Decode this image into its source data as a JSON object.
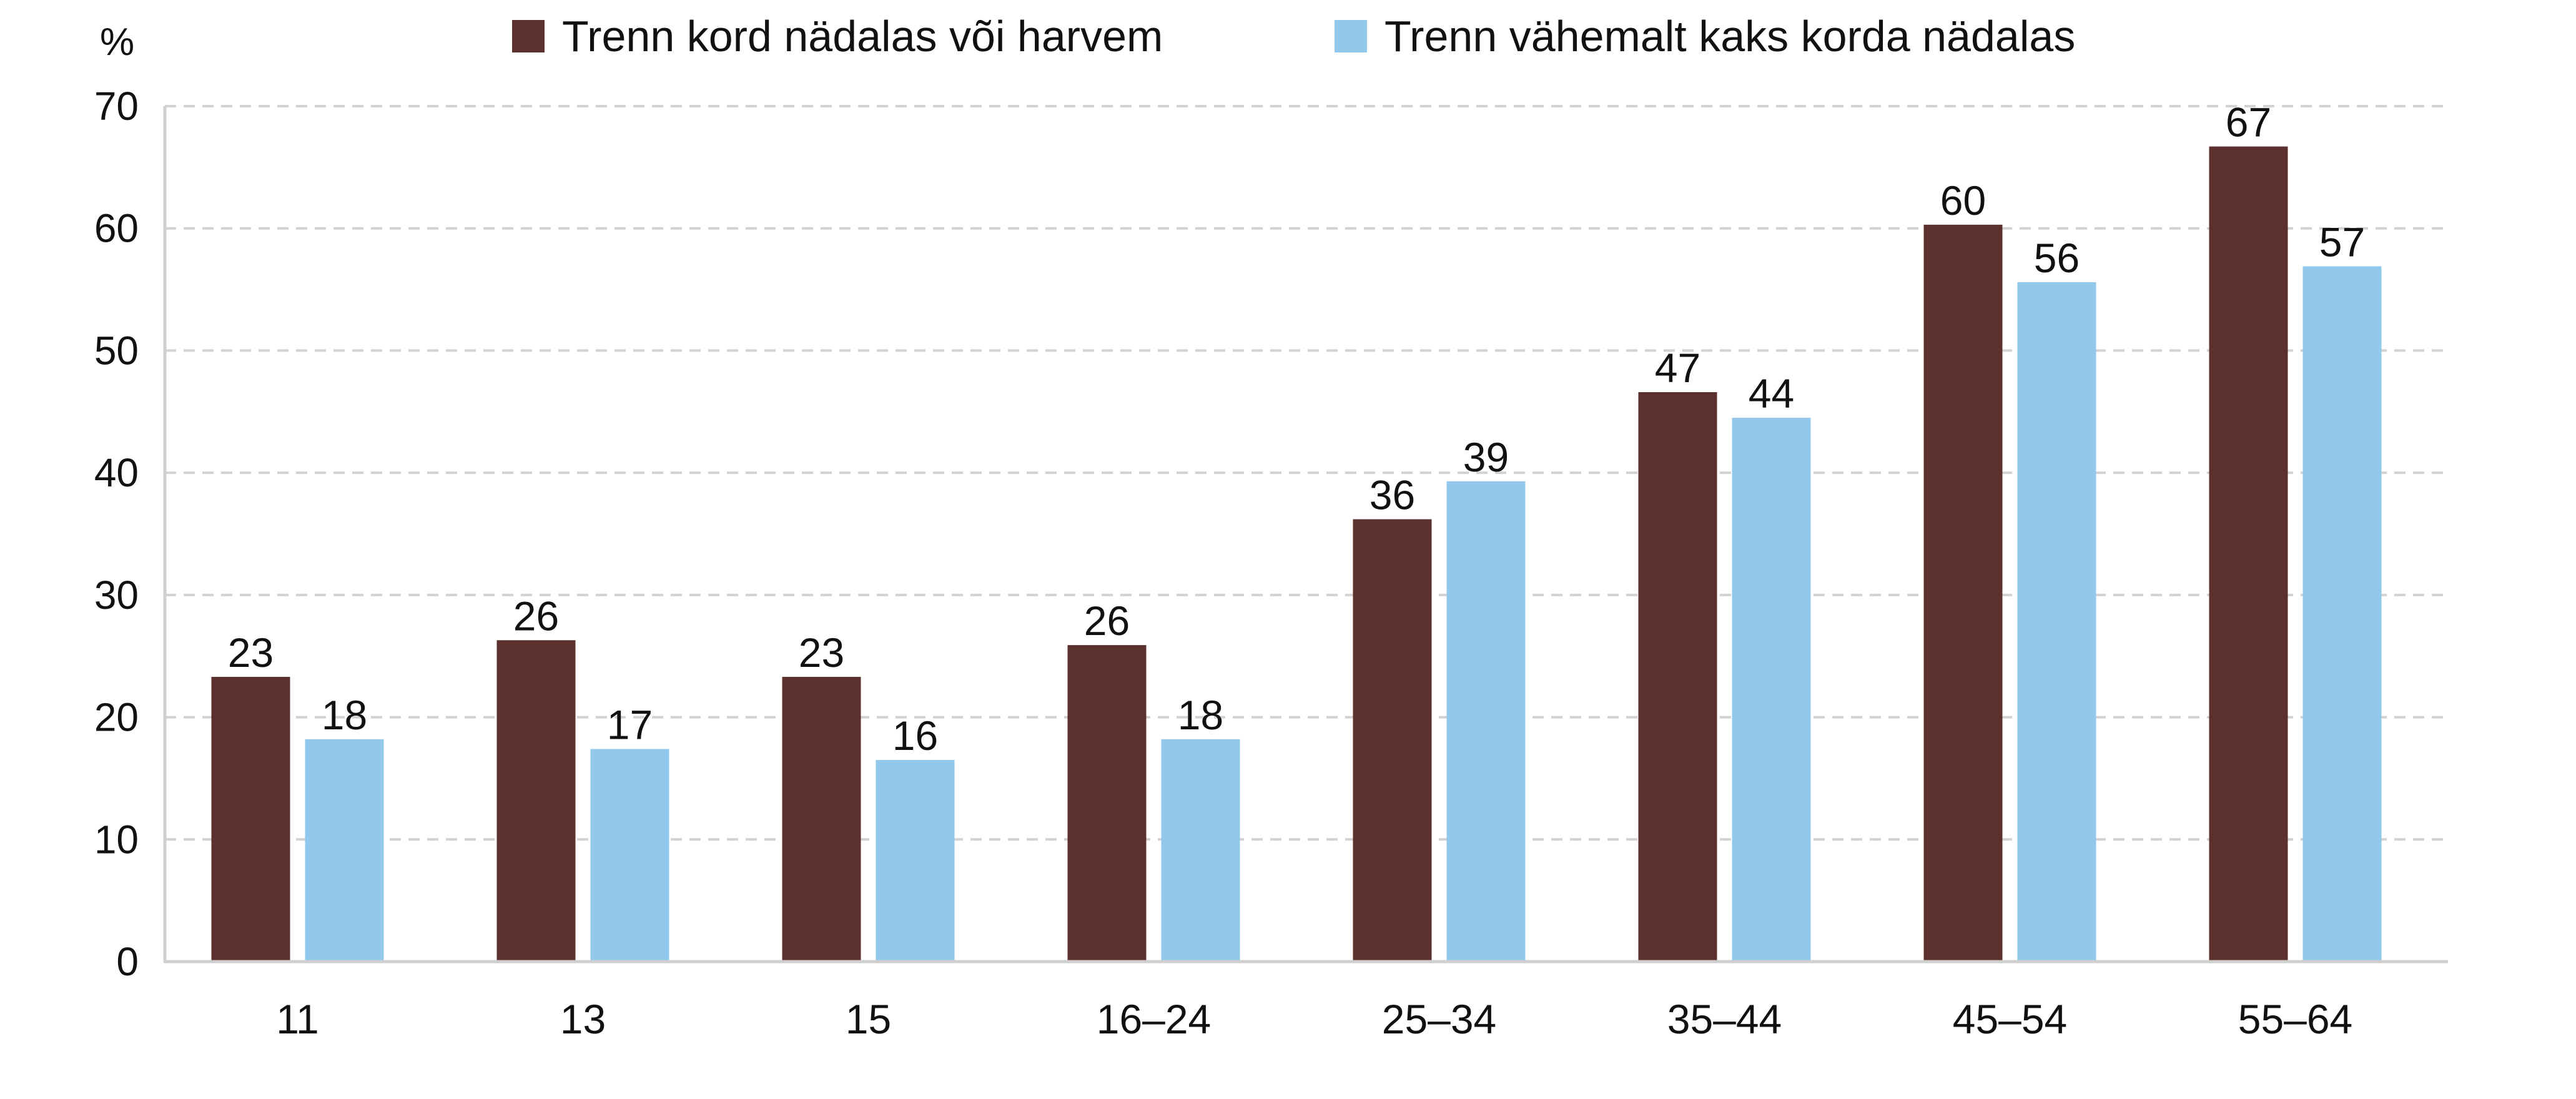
{
  "chart_data": {
    "type": "bar",
    "ylabel": "%",
    "ylim": [
      0,
      70
    ],
    "yticks": [
      0,
      10,
      20,
      30,
      40,
      50,
      60,
      70
    ],
    "grid": true,
    "legend_position": "top",
    "categories": [
      "11",
      "13",
      "15",
      "16–24",
      "25–34",
      "35–44",
      "45–54",
      "55–64"
    ],
    "series": [
      {
        "name": "Trenn kord nädalas või harvem",
        "color": "#5c302c",
        "values": [
          23.3,
          26.3,
          23.3,
          25.9,
          36.2,
          46.6,
          60.3,
          66.7
        ],
        "labels": [
          "23",
          "26",
          "23",
          "26",
          "36",
          "47",
          "60",
          "67"
        ]
      },
      {
        "name": "Trenn vähemalt kaks korda nädalas",
        "color": "#92c8ec",
        "values": [
          18.2,
          17.4,
          16.5,
          18.2,
          39.3,
          44.5,
          55.6,
          56.9
        ],
        "labels": [
          "18",
          "17",
          "16",
          "18",
          "39",
          "44",
          "56",
          "57"
        ]
      }
    ]
  }
}
